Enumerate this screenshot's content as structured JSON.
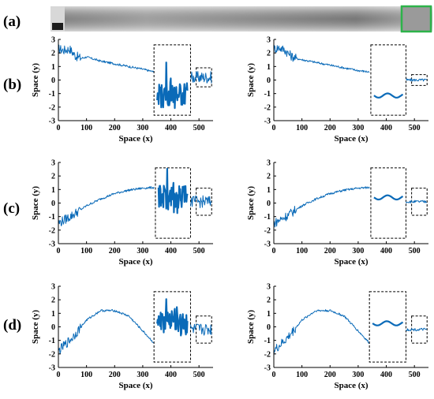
{
  "strip": {
    "label": "(a)",
    "highlight_color": "#2db34a"
  },
  "row_labels": [
    "(b)",
    "(c)",
    "(d)"
  ],
  "series_color": "#0a6ab8",
  "chart_data": [
    {
      "type": "line",
      "panel": "b-left",
      "xlabel": "Space (x)",
      "ylabel": "Space (y)",
      "xlim": [
        0,
        550
      ],
      "ylim": [
        -3,
        3
      ],
      "xticks": [
        0,
        100,
        200,
        300,
        400,
        500
      ],
      "yticks": [
        -3,
        -2,
        -1,
        0,
        1,
        2,
        3
      ],
      "x": [
        0,
        20,
        40,
        60,
        80,
        100,
        150,
        200,
        250,
        300,
        340
      ],
      "y": [
        2.3,
        2.2,
        2.3,
        1.8,
        1.6,
        1.7,
        1.4,
        1.2,
        1.0,
        0.8,
        0.6
      ],
      "insets": [
        {
          "box_x": [
            340,
            470
          ],
          "box_y": [
            -2.6,
            2.6
          ],
          "kind": "noisy-zoom"
        },
        {
          "box_x": [
            490,
            545
          ],
          "box_y": [
            -0.5,
            0.9
          ],
          "kind": "noisy-tail"
        }
      ]
    },
    {
      "type": "line",
      "panel": "b-right",
      "xlabel": "Space (x)",
      "ylabel": "Space (y)",
      "xlim": [
        0,
        550
      ],
      "ylim": [
        -3,
        3
      ],
      "xticks": [
        0,
        100,
        200,
        300,
        400,
        500
      ],
      "yticks": [
        -3,
        -2,
        -1,
        0,
        1,
        2,
        3
      ],
      "x": [
        0,
        20,
        40,
        60,
        80,
        100,
        150,
        200,
        250,
        300,
        340
      ],
      "y": [
        2.3,
        2.4,
        2.2,
        1.8,
        1.6,
        1.5,
        1.3,
        1.1,
        0.9,
        0.7,
        0.6
      ],
      "insets": [
        {
          "box_x": [
            345,
            470
          ],
          "box_y": [
            -2.6,
            2.6
          ],
          "kind": "smooth-zoom"
        },
        {
          "box_x": [
            490,
            545
          ],
          "box_y": [
            -0.4,
            0.4
          ],
          "kind": "smooth-tail"
        }
      ]
    },
    {
      "type": "line",
      "panel": "c-left",
      "xlabel": "Space (x)",
      "ylabel": "Space (y)",
      "xlim": [
        0,
        550
      ],
      "ylim": [
        -3,
        3
      ],
      "xticks": [
        0,
        100,
        200,
        300,
        400,
        500
      ],
      "yticks": [
        -3,
        -2,
        -1,
        0,
        1,
        2,
        3
      ],
      "x": [
        0,
        50,
        100,
        150,
        200,
        250,
        300,
        340
      ],
      "y": [
        -1.5,
        -0.9,
        -0.2,
        0.3,
        0.7,
        0.95,
        1.1,
        1.15
      ],
      "insets": [
        {
          "box_x": [
            345,
            470
          ],
          "box_y": [
            -2.6,
            2.6
          ],
          "kind": "noisy-zoom"
        },
        {
          "box_x": [
            490,
            545
          ],
          "box_y": [
            -0.9,
            1.1
          ],
          "kind": "noisy-tail"
        }
      ]
    },
    {
      "type": "line",
      "panel": "c-right",
      "xlabel": "Space (x)",
      "ylabel": "Space (y)",
      "xlim": [
        0,
        550
      ],
      "ylim": [
        -3,
        3
      ],
      "xticks": [
        0,
        100,
        200,
        300,
        400,
        500
      ],
      "yticks": [
        -3,
        -2,
        -1,
        0,
        1,
        2,
        3
      ],
      "x": [
        0,
        50,
        100,
        150,
        200,
        250,
        300,
        340
      ],
      "y": [
        -1.5,
        -0.9,
        -0.2,
        0.3,
        0.7,
        0.95,
        1.1,
        1.15
      ],
      "insets": [
        {
          "box_x": [
            345,
            470
          ],
          "box_y": [
            -2.6,
            2.6
          ],
          "kind": "smooth-zoom"
        },
        {
          "box_x": [
            490,
            545
          ],
          "box_y": [
            -0.9,
            1.1
          ],
          "kind": "smooth-tail"
        }
      ]
    },
    {
      "type": "line",
      "panel": "d-left",
      "xlabel": "Space (x)",
      "ylabel": "Space (y)",
      "xlim": [
        0,
        550
      ],
      "ylim": [
        -3,
        3
      ],
      "xticks": [
        0,
        100,
        200,
        300,
        400,
        500
      ],
      "yticks": [
        -3,
        -2,
        -1,
        0,
        1,
        2,
        3
      ],
      "x": [
        0,
        50,
        100,
        150,
        200,
        250,
        300,
        340
      ],
      "y": [
        -1.8,
        -0.8,
        0.5,
        1.2,
        1.2,
        0.8,
        -0.3,
        -1.2
      ],
      "insets": [
        {
          "box_x": [
            340,
            470
          ],
          "box_y": [
            -2.6,
            2.6
          ],
          "kind": "noisy-zoom"
        },
        {
          "box_x": [
            490,
            545
          ],
          "box_y": [
            -1.2,
            0.8
          ],
          "kind": "noisy-tail"
        }
      ]
    },
    {
      "type": "line",
      "panel": "d-right",
      "xlabel": "Space (x)",
      "ylabel": "Space (y)",
      "xlim": [
        0,
        550
      ],
      "ylim": [
        -3,
        3
      ],
      "xticks": [
        0,
        100,
        200,
        300,
        400,
        500
      ],
      "yticks": [
        -3,
        -2,
        -1,
        0,
        1,
        2,
        3
      ],
      "x": [
        0,
        50,
        100,
        150,
        200,
        250,
        300,
        340
      ],
      "y": [
        -1.8,
        -0.8,
        0.5,
        1.2,
        1.2,
        0.8,
        -0.3,
        -1.2
      ],
      "insets": [
        {
          "box_x": [
            340,
            470
          ],
          "box_y": [
            -2.6,
            2.6
          ],
          "kind": "smooth-zoom"
        },
        {
          "box_x": [
            490,
            545
          ],
          "box_y": [
            -1.2,
            0.8
          ],
          "kind": "smooth-tail"
        }
      ]
    }
  ]
}
